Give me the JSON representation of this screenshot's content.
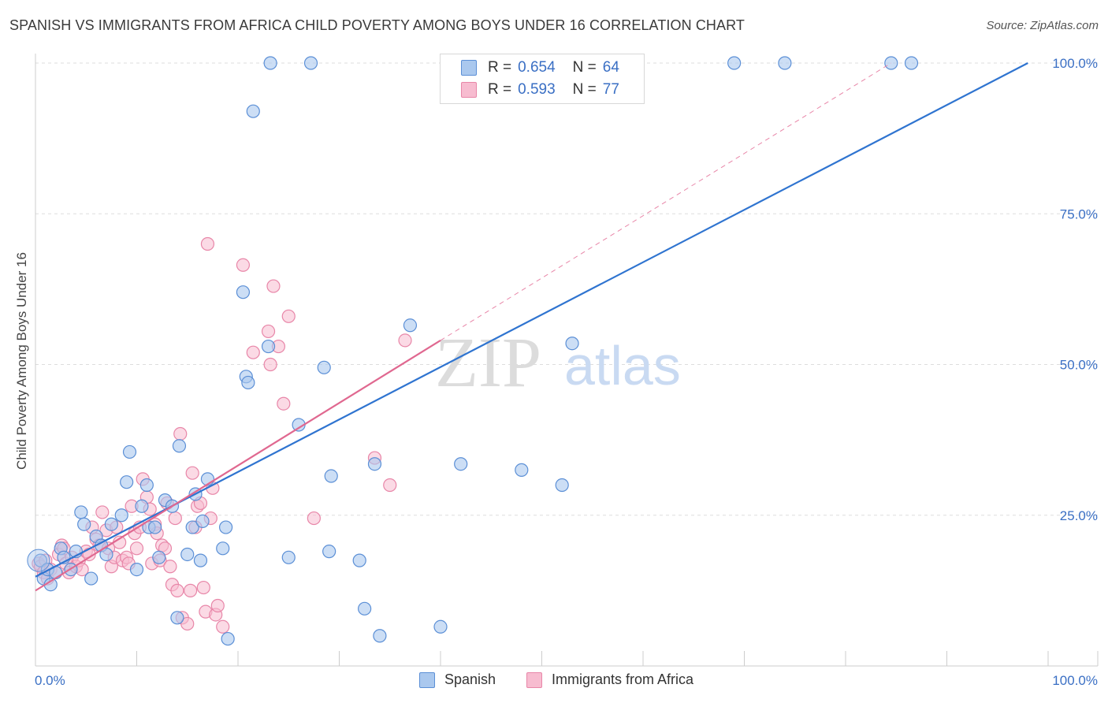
{
  "title": "SPANISH VS IMMIGRANTS FROM AFRICA CHILD POVERTY AMONG BOYS UNDER 16 CORRELATION CHART",
  "source": "Source: ZipAtlas.com",
  "watermark": {
    "zip": "ZIP",
    "atlas": "atlas"
  },
  "legend": {
    "rows": [
      {
        "r_label": "R =",
        "r_value": "0.654",
        "n_label": "N =",
        "n_value": "64"
      },
      {
        "r_label": "R =",
        "r_value": "0.593",
        "n_label": "N =",
        "n_value": "77"
      }
    ]
  },
  "bottom_legend": [
    "Spanish",
    "Immigrants from Africa"
  ],
  "colors": {
    "spanish_fill": "#aac8ee",
    "spanish_stroke": "#5b8fd6",
    "spanish_line": "#2f74d0",
    "africa_fill": "#f7bcd0",
    "africa_stroke": "#e886a8",
    "africa_line": "#e06890",
    "tick_text": "#3a6fc4",
    "grid": "#dddddd"
  },
  "chart_data": {
    "type": "scatter",
    "title": "SPANISH VS IMMIGRANTS FROM AFRICA CHILD POVERTY AMONG BOYS UNDER 16 CORRELATION CHART",
    "xlabel": "",
    "ylabel": "Child Poverty Among Boys Under 16",
    "xlim": [
      0,
      100
    ],
    "ylim": [
      0,
      100
    ],
    "x_tick_labels": [
      "0.0%",
      "100.0%"
    ],
    "y_tick_labels": [
      "25.0%",
      "50.0%",
      "75.0%",
      "100.0%"
    ],
    "y_ticks": [
      25,
      50,
      75,
      100
    ],
    "grid": true,
    "legend_position": "top-center",
    "series": [
      {
        "name": "Spanish",
        "r": 0.654,
        "n": 64,
        "trend": {
          "x": [
            0,
            98
          ],
          "y": [
            14.8,
            100
          ]
        },
        "points": [
          [
            0.5,
            17.5
          ],
          [
            0.8,
            14.5
          ],
          [
            1.2,
            16
          ],
          [
            1.5,
            13.5
          ],
          [
            2,
            15.5
          ],
          [
            2.5,
            19.5
          ],
          [
            2.8,
            18
          ],
          [
            3.5,
            16
          ],
          [
            4,
            19
          ],
          [
            4.5,
            25.5
          ],
          [
            4.8,
            23.5
          ],
          [
            5.5,
            14.5
          ],
          [
            6,
            21.5
          ],
          [
            6.5,
            20
          ],
          [
            7,
            18.5
          ],
          [
            7.5,
            23.5
          ],
          [
            8.5,
            25
          ],
          [
            9,
            30.5
          ],
          [
            9.3,
            35.5
          ],
          [
            10,
            16
          ],
          [
            10.5,
            26.5
          ],
          [
            11,
            30
          ],
          [
            11.2,
            23
          ],
          [
            11.8,
            23
          ],
          [
            12.2,
            18
          ],
          [
            12.8,
            27.5
          ],
          [
            13.5,
            26.5
          ],
          [
            14,
            8
          ],
          [
            14.2,
            36.5
          ],
          [
            15,
            18.5
          ],
          [
            15.5,
            23
          ],
          [
            15.8,
            28.5
          ],
          [
            16.3,
            17.5
          ],
          [
            16.5,
            24
          ],
          [
            17,
            31
          ],
          [
            18.5,
            19.5
          ],
          [
            18.8,
            23
          ],
          [
            19,
            4.5
          ],
          [
            21.5,
            92
          ],
          [
            20.5,
            62
          ],
          [
            20.8,
            48
          ],
          [
            21,
            47
          ],
          [
            23,
            53
          ],
          [
            23.2,
            100
          ],
          [
            25,
            18
          ],
          [
            26,
            40
          ],
          [
            27.2,
            100
          ],
          [
            28.5,
            49.5
          ],
          [
            29,
            19
          ],
          [
            29.2,
            31.5
          ],
          [
            32,
            17.5
          ],
          [
            32.5,
            9.5
          ],
          [
            33.5,
            33.5
          ],
          [
            34,
            5
          ],
          [
            37,
            56.5
          ],
          [
            40,
            6.5
          ],
          [
            42,
            33.5
          ],
          [
            48,
            32.5
          ],
          [
            52,
            30
          ],
          [
            53,
            53.5
          ],
          [
            69,
            100
          ],
          [
            74,
            100
          ],
          [
            84.5,
            100
          ],
          [
            86.5,
            100
          ]
        ]
      },
      {
        "name": "Immigrants from Africa",
        "r": 0.593,
        "n": 77,
        "trend": {
          "x": [
            0,
            40
          ],
          "y": [
            12.5,
            54
          ]
        },
        "trend_dashed": {
          "x": [
            40,
            84.5
          ],
          "y": [
            54,
            100
          ]
        },
        "points": [
          [
            0.3,
            17
          ],
          [
            0.5,
            16.5
          ],
          [
            0.8,
            15.5
          ],
          [
            1,
            17.5
          ],
          [
            1.2,
            14.5
          ],
          [
            1.5,
            16
          ],
          [
            2,
            15.5
          ],
          [
            2.3,
            18.5
          ],
          [
            2.6,
            20
          ],
          [
            2.8,
            19.5
          ],
          [
            3,
            17
          ],
          [
            3.3,
            15.5
          ],
          [
            3.6,
            18
          ],
          [
            4,
            16.5
          ],
          [
            4.3,
            17.5
          ],
          [
            4.6,
            16
          ],
          [
            5,
            19
          ],
          [
            5.3,
            18.5
          ],
          [
            5.6,
            23
          ],
          [
            6,
            21
          ],
          [
            6.3,
            20
          ],
          [
            6.6,
            25.5
          ],
          [
            7,
            22.5
          ],
          [
            7.2,
            19.5
          ],
          [
            7.5,
            16.5
          ],
          [
            7.8,
            18
          ],
          [
            8,
            23
          ],
          [
            8.3,
            20.5
          ],
          [
            8.6,
            17.5
          ],
          [
            9,
            18
          ],
          [
            9.2,
            17
          ],
          [
            9.5,
            26.5
          ],
          [
            9.8,
            22
          ],
          [
            10,
            19.5
          ],
          [
            10.3,
            23
          ],
          [
            10.6,
            31
          ],
          [
            11,
            28
          ],
          [
            11.3,
            26
          ],
          [
            11.5,
            17
          ],
          [
            11.8,
            23.5
          ],
          [
            12,
            22
          ],
          [
            12.3,
            17.5
          ],
          [
            12.5,
            20
          ],
          [
            12.8,
            19.5
          ],
          [
            13,
            27
          ],
          [
            13.3,
            16.5
          ],
          [
            13.5,
            13.5
          ],
          [
            13.8,
            24.5
          ],
          [
            14,
            12.5
          ],
          [
            14.3,
            38.5
          ],
          [
            14.5,
            8
          ],
          [
            15,
            7
          ],
          [
            15.3,
            12.5
          ],
          [
            15.5,
            32
          ],
          [
            15.8,
            23
          ],
          [
            16,
            26.5
          ],
          [
            16.3,
            27
          ],
          [
            16.6,
            13
          ],
          [
            16.8,
            9
          ],
          [
            17,
            70
          ],
          [
            17.3,
            24.5
          ],
          [
            17.5,
            29.5
          ],
          [
            17.8,
            8.5
          ],
          [
            18,
            10
          ],
          [
            18.5,
            6.5
          ],
          [
            20.5,
            66.5
          ],
          [
            21.5,
            52
          ],
          [
            23,
            55.5
          ],
          [
            23.2,
            50
          ],
          [
            23.5,
            63
          ],
          [
            24,
            53
          ],
          [
            24.5,
            43.5
          ],
          [
            25,
            58
          ],
          [
            27.5,
            24.5
          ],
          [
            33.5,
            34.5
          ],
          [
            36.5,
            54
          ],
          [
            35,
            30
          ]
        ]
      }
    ]
  }
}
